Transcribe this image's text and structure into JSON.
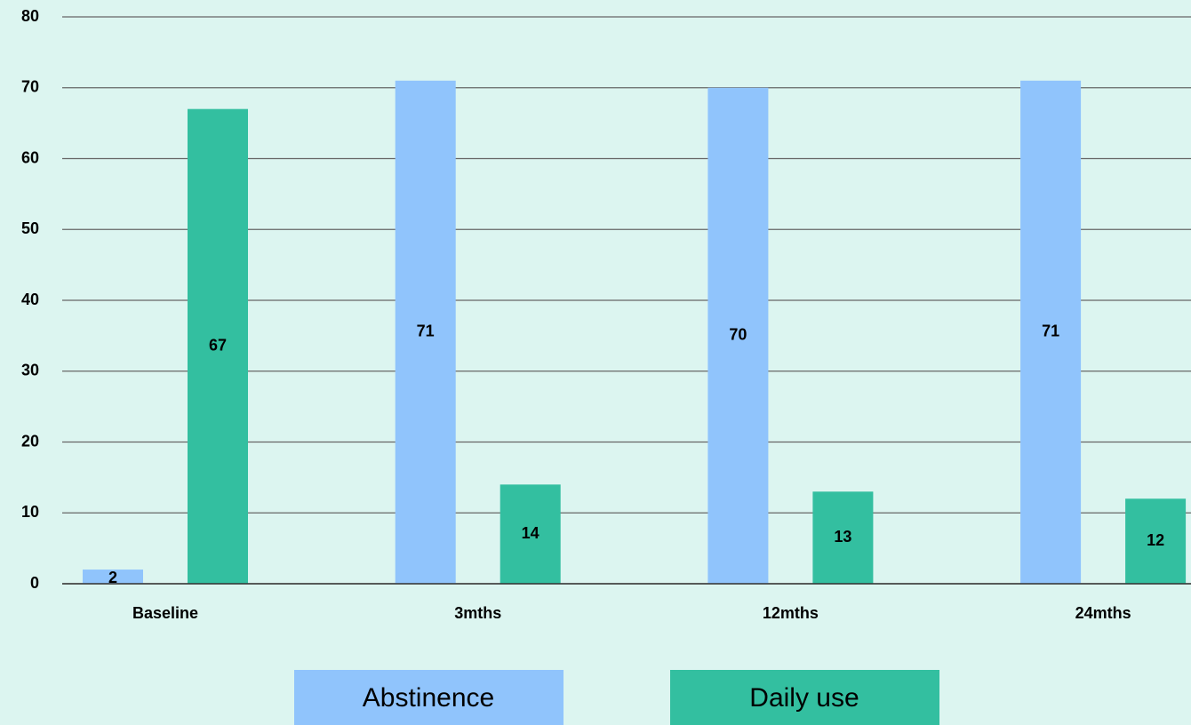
{
  "chart_data": {
    "type": "bar",
    "categories": [
      "Baseline",
      "3mths",
      "12mths",
      "24mths"
    ],
    "series": [
      {
        "name": "Abstinence",
        "color": "#90c4fc",
        "values": [
          2,
          71,
          70,
          71
        ]
      },
      {
        "name": "Daily use",
        "color": "#33bfa0",
        "values": [
          67,
          14,
          13,
          12
        ]
      }
    ],
    "ylim": [
      0,
      80
    ],
    "yticks": [
      0,
      10,
      20,
      30,
      40,
      50,
      60,
      70,
      80
    ],
    "grid": true,
    "legend": "bottom"
  }
}
